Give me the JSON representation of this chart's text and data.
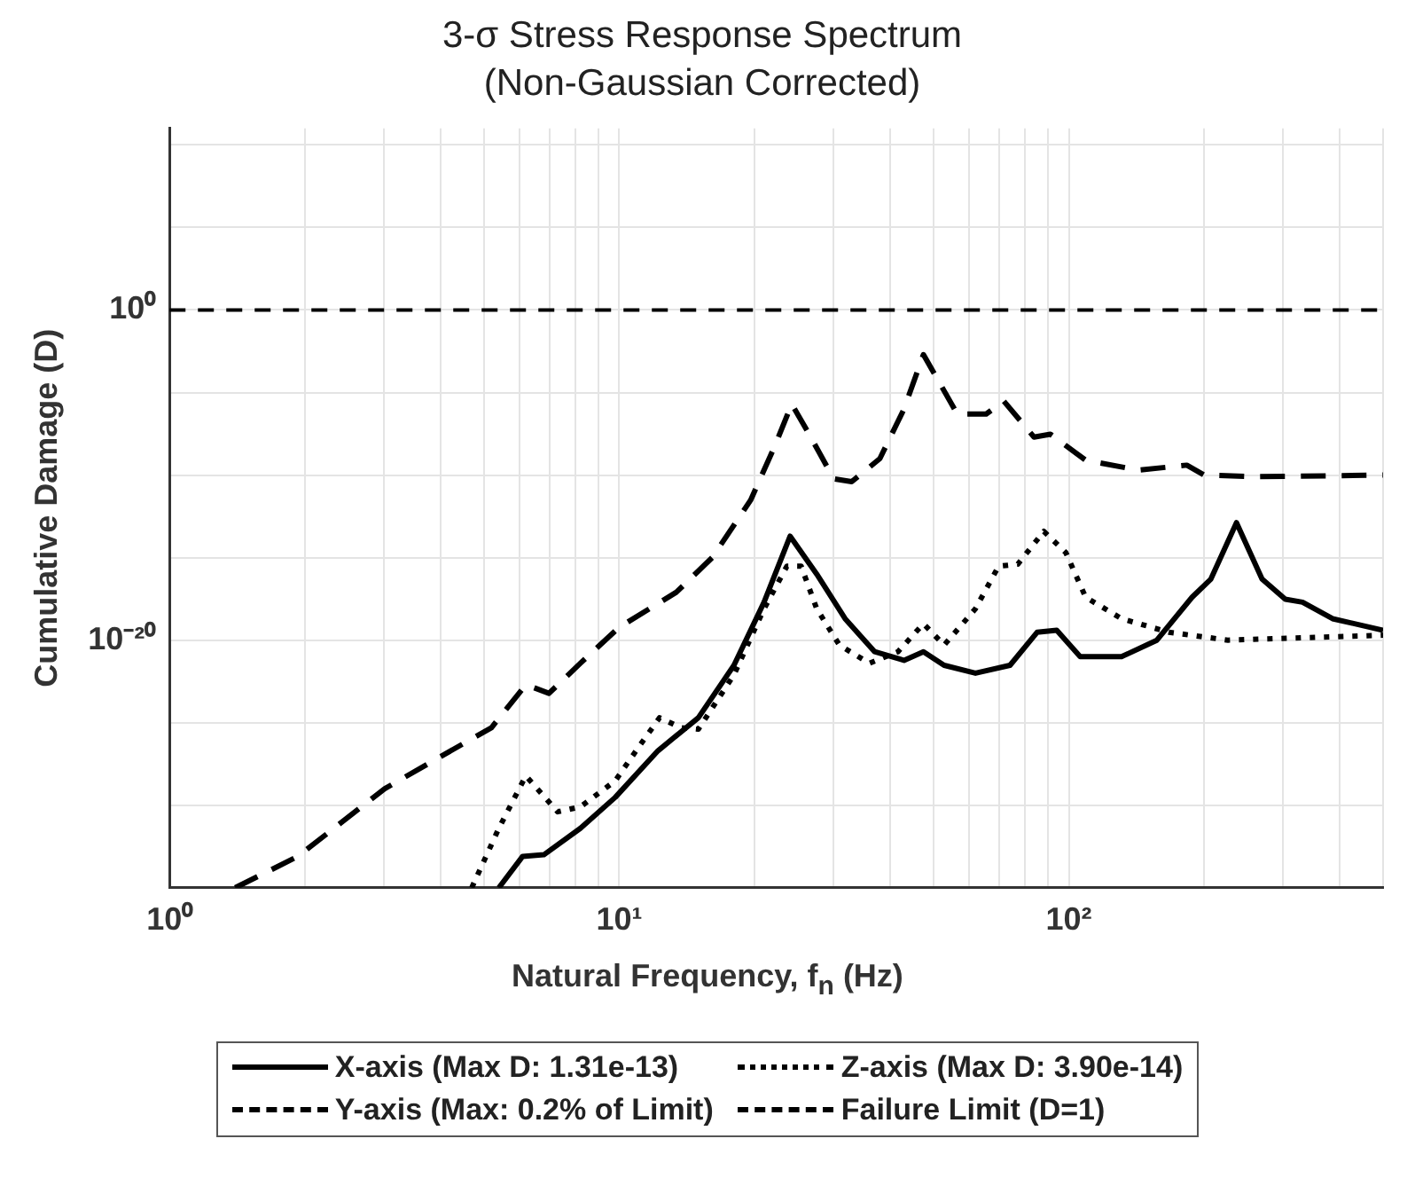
{
  "chart_data": {
    "type": "line",
    "title": "3-σ Stress Response Spectrum",
    "subtitle": "(Non-Gaussian Corrected)",
    "xlabel": "Natural Frequency, f$_{n}$ (Hz)",
    "ylabel": "Cumulative Damage (D)",
    "log": "xy",
    "grid": true,
    "legend": "bottom",
    "marker": "none",
    "xlim": [
      1,
      500
    ],
    "xticks": [
      {
        "value": 1,
        "label": "10⁰"
      },
      {
        "value": 2,
        "label": null
      },
      {
        "value": 3,
        "label": null
      },
      {
        "value": 4,
        "label": null
      },
      {
        "value": 5,
        "label": null
      },
      {
        "value": 6,
        "label": null
      },
      {
        "value": 7,
        "label": null
      },
      {
        "value": 8,
        "label": null
      },
      {
        "value": 9,
        "label": null
      },
      {
        "value": 10,
        "label": "10¹"
      },
      {
        "value": 20,
        "label": null
      },
      {
        "value": 30,
        "label": null
      },
      {
        "value": 40,
        "label": null
      },
      {
        "value": 50,
        "label": null
      },
      {
        "value": 60,
        "label": null
      },
      {
        "value": 70,
        "label": null
      },
      {
        "value": 80,
        "label": null
      },
      {
        "value": 90,
        "label": null
      },
      {
        "value": 100,
        "label": "10²"
      },
      {
        "value": 200,
        "label": null
      },
      {
        "value": 300,
        "label": null
      },
      {
        "value": 400,
        "label": null
      },
      {
        "value": 500,
        "label": null
      }
    ],
    "ylim": [
      1e-35,
      100000000000.0
    ],
    "yticks": [
      {
        "value": 1e-35,
        "label": null
      },
      {
        "value": 1e-30,
        "label": null
      },
      {
        "value": 1e-25,
        "label": null
      },
      {
        "value": 1e-20,
        "label": "10⁻²⁰"
      },
      {
        "value": 1e-15,
        "label": null
      },
      {
        "value": 1e-10,
        "label": null
      },
      {
        "value": 1e-05,
        "label": null
      },
      {
        "value": 1,
        "label": "10⁰"
      },
      {
        "value": 100000.0,
        "label": null
      },
      {
        "value": 10000000000.0,
        "label": null
      }
    ],
    "series": [
      {
        "name": "X-axis (Max D: 1.31e-13)",
        "color": "#000000",
        "line_style": "solid",
        "x": [
          5.4,
          6.1,
          6.8,
          8.2,
          9.8,
          12.2,
          15,
          18,
          21,
          24,
          27.5,
          31.8,
          37,
          43,
          47.5,
          52.8,
          62,
          74,
          85,
          94,
          106,
          131,
          157,
          188,
          207,
          236,
          269,
          303,
          331,
          386,
          500
        ],
        "values": [
          1e-35,
          8e-34,
          1e-33,
          4e-32,
          3e-30,
          2e-27,
          2e-25,
          3e-22,
          2e-18,
          2e-14,
          1e-16,
          2e-19,
          2e-21,
          6e-22,
          2e-21,
          3e-22,
          1e-22,
          3e-22,
          3e-20,
          4e-20,
          1e-21,
          1e-21,
          1e-20,
          4e-18,
          5e-17,
          1.31e-13,
          5e-17,
          3e-18,
          2e-18,
          2e-19,
          4e-20
        ]
      },
      {
        "name": "Y-axis (Max: 0.2% of Limit)",
        "color": "#000000",
        "line_style": "dashed",
        "x": [
          1.4,
          1.93,
          3.01,
          3.98,
          5.2,
          6.2,
          6.98,
          8.2,
          10,
          13.4,
          16.1,
          19.6,
          22.2,
          24.2,
          26.3,
          30,
          32.9,
          38,
          43,
          47.5,
          56.5,
          65.5,
          71.7,
          83.7,
          91,
          109,
          143,
          183,
          200,
          262,
          500
        ],
        "values": [
          1e-35,
          8e-34,
          1e-29,
          8e-28,
          5e-26,
          2e-23,
          6e-24,
          4e-22,
          6e-20,
          8e-18,
          1e-15,
          3e-12,
          6e-09,
          2e-06,
          4e-08,
          6e-11,
          4e-11,
          1e-09,
          1e-06,
          0.002,
          5e-07,
          5e-07,
          3e-06,
          2e-08,
          3e-08,
          8e-10,
          2e-10,
          4e-10,
          1e-10,
          8e-11,
          1e-10
        ]
      },
      {
        "name": "Z-axis (Max D: 3.90e-14)",
        "color": "#000000",
        "line_style": "dotted",
        "x": [
          4.7,
          5.4,
          6.2,
          7.3,
          8.2,
          9.8,
          11.1,
          12.3,
          13.7,
          15,
          18,
          21,
          23.6,
          25.4,
          27.5,
          30.9,
          36,
          41.7,
          47.5,
          52.8,
          62,
          69.8,
          77,
          88,
          98.5,
          109,
          131,
          167,
          226,
          500
        ],
        "values": [
          1e-35,
          4e-32,
          6e-29,
          4e-31,
          8e-31,
          3e-29,
          4e-27,
          2e-25,
          5e-26,
          4e-26,
          8e-23,
          8e-19,
          3e-16,
          3e-16,
          8e-19,
          5e-21,
          4e-22,
          2e-21,
          1e-19,
          5e-21,
          8e-19,
          3e-16,
          4e-16,
          3.9e-14,
          2e-15,
          4e-18,
          2e-19,
          3e-20,
          1e-20,
          2e-20
        ]
      }
    ],
    "ref_lines": [
      {
        "axis": "y",
        "value": 1,
        "label": "Failure Limit (D=1)",
        "color": "#000000",
        "line_style": "dashed"
      }
    ]
  }
}
